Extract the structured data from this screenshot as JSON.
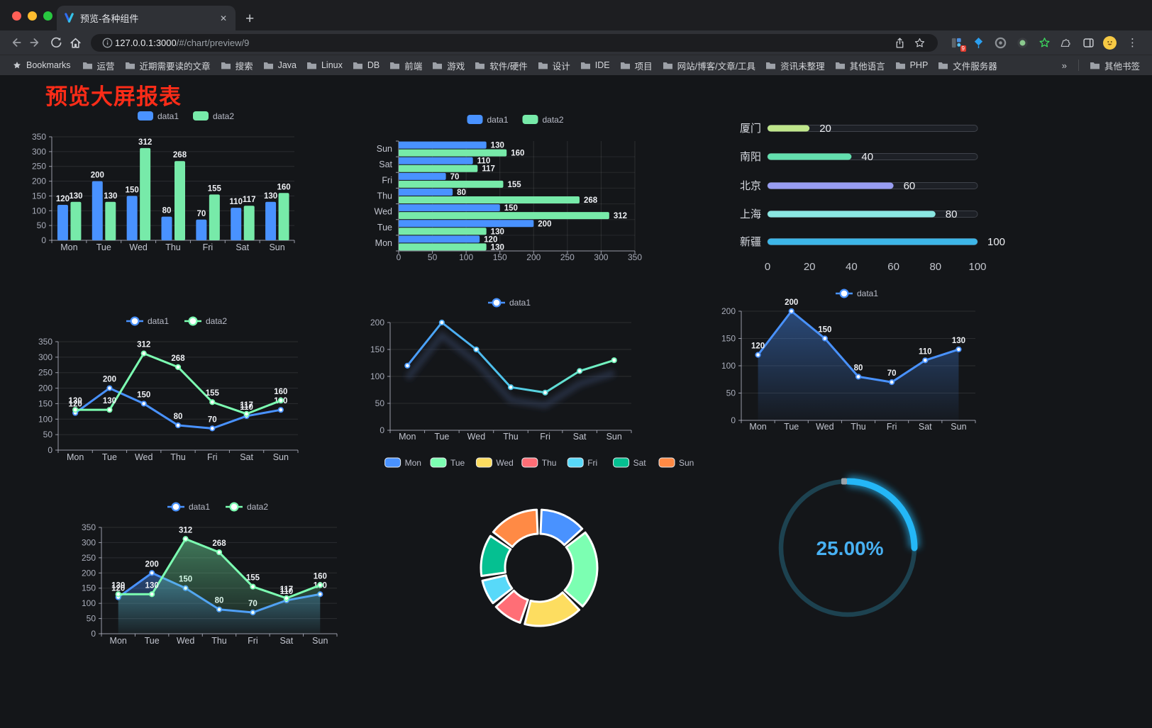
{
  "browser": {
    "tab_title": "预览-各种组件",
    "url_host": "127.0.0.1:3000",
    "url_path": "/#/chart/preview/9",
    "bookmarks_label": "Bookmarks",
    "bookmarks": [
      "运营",
      "近期需要读的文章",
      "搜索",
      "Java",
      "Linux",
      "DB",
      "前端",
      "游戏",
      "软件/硬件",
      "设计",
      "IDE",
      "项目",
      "网站/博客/文章/工具",
      "资讯未整理",
      "其他语言",
      "PHP",
      "文件服务器"
    ],
    "overflow_chevron": "»",
    "other_bookmarks": "其他书签",
    "extension_badge": "9",
    "newtab_label": "+",
    "close_label": "✕",
    "menu_label": "⋮"
  },
  "page": {
    "title": "预览大屏报表",
    "title_color": "#fb2c18",
    "background": "#141619"
  },
  "palette": {
    "blue": "#4992ff",
    "green": "#7cffb2",
    "yellow": "#fddd60",
    "red": "#ff6e76",
    "lightblue": "#58d9f9",
    "teal": "#05c091",
    "orange": "#ff8a45"
  },
  "chart_data": [
    {
      "id": "c1",
      "type": "bar",
      "legend": [
        "data1",
        "data2"
      ],
      "legend_position": "top",
      "categories": [
        "Mon",
        "Tue",
        "Wed",
        "Thu",
        "Fri",
        "Sat",
        "Sun"
      ],
      "series": [
        {
          "name": "data1",
          "color": "#4992ff",
          "values": [
            120,
            200,
            150,
            80,
            70,
            110,
            130
          ]
        },
        {
          "name": "data2",
          "color": "#77eaa9",
          "values": [
            130,
            130,
            312,
            268,
            155,
            117,
            160
          ]
        }
      ],
      "ylim": [
        0,
        350
      ],
      "ytick_step": 50,
      "grid": true,
      "show_labels": true
    },
    {
      "id": "c2",
      "type": "bar-horizontal",
      "legend": [
        "data1",
        "data2"
      ],
      "legend_position": "top",
      "categories": [
        "Mon",
        "Tue",
        "Wed",
        "Thu",
        "Fri",
        "Sat",
        "Sun"
      ],
      "series": [
        {
          "name": "data1",
          "color": "#4992ff",
          "values": [
            120,
            200,
            150,
            80,
            70,
            110,
            130
          ]
        },
        {
          "name": "data2",
          "color": "#77eaa9",
          "values": [
            130,
            130,
            312,
            268,
            155,
            117,
            160
          ]
        }
      ],
      "xlim": [
        0,
        350
      ],
      "xtick_step": 50,
      "grid": true,
      "show_labels": true
    },
    {
      "id": "c3",
      "type": "progress-bars",
      "xlim": [
        0,
        100
      ],
      "xticks": [
        0,
        20,
        40,
        60,
        80,
        100
      ],
      "rows": [
        {
          "label": "厦门",
          "value": 20,
          "color": "#bfe68b"
        },
        {
          "label": "南阳",
          "value": 40,
          "color": "#63dfae"
        },
        {
          "label": "北京",
          "value": 60,
          "color": "#989df2"
        },
        {
          "label": "上海",
          "value": 80,
          "color": "#8ae7e2"
        },
        {
          "label": "新疆",
          "value": 100,
          "color": "#3db6e8"
        }
      ]
    },
    {
      "id": "c4",
      "type": "line",
      "legend": [
        "data1",
        "data2"
      ],
      "legend_position": "top",
      "categories": [
        "Mon",
        "Tue",
        "Wed",
        "Thu",
        "Fri",
        "Sat",
        "Sun"
      ],
      "series": [
        {
          "name": "data1",
          "color": "#4992ff",
          "values": [
            120,
            200,
            150,
            80,
            70,
            110,
            130
          ]
        },
        {
          "name": "data2",
          "color": "#7cffb2",
          "values": [
            130,
            130,
            312,
            268,
            155,
            117,
            160
          ]
        }
      ],
      "ylim": [
        0,
        350
      ],
      "ytick_step": 50,
      "grid": true,
      "show_labels": true,
      "area": false
    },
    {
      "id": "c5",
      "type": "line",
      "legend": [
        "data1"
      ],
      "legend_position": "top",
      "categories": [
        "Mon",
        "Tue",
        "Wed",
        "Thu",
        "Fri",
        "Sat",
        "Sun"
      ],
      "series": [
        {
          "name": "data1",
          "gradient": [
            "#4992ff",
            "#4fc7e9",
            "#7cffb2"
          ],
          "color": "#4992ff",
          "values": [
            120,
            200,
            150,
            80,
            70,
            110,
            130
          ]
        }
      ],
      "ylim": [
        0,
        200
      ],
      "ytick_step": 50,
      "grid": true,
      "show_labels": false,
      "area": false,
      "shadow": true
    },
    {
      "id": "c6",
      "type": "area",
      "legend": [
        "data1"
      ],
      "legend_position": "top",
      "categories": [
        "Mon",
        "Tue",
        "Wed",
        "Thu",
        "Fri",
        "Sat",
        "Sun"
      ],
      "series": [
        {
          "name": "data1",
          "color": "#4992ff",
          "values": [
            120,
            200,
            150,
            80,
            70,
            110,
            130
          ],
          "area": true
        }
      ],
      "ylim": [
        0,
        200
      ],
      "ytick_step": 50,
      "grid": true,
      "show_labels": true
    },
    {
      "id": "c7",
      "type": "area",
      "legend": [
        "data1",
        "data2"
      ],
      "legend_position": "top",
      "categories": [
        "Mon",
        "Tue",
        "Wed",
        "Thu",
        "Fri",
        "Sat",
        "Sun"
      ],
      "series": [
        {
          "name": "data1",
          "color": "#4992ff",
          "values": [
            120,
            200,
            150,
            80,
            70,
            110,
            130
          ],
          "area": true
        },
        {
          "name": "data2",
          "color": "#7cffb2",
          "values": [
            130,
            130,
            312,
            268,
            155,
            117,
            160
          ],
          "area": true
        }
      ],
      "ylim": [
        0,
        350
      ],
      "ytick_step": 50,
      "grid": true,
      "show_labels": true
    },
    {
      "id": "c8",
      "type": "pie",
      "legend_position": "top",
      "items": [
        {
          "label": "Mon",
          "value": 120,
          "color": "#4992ff"
        },
        {
          "label": "Tue",
          "value": 200,
          "color": "#7cffb2"
        },
        {
          "label": "Wed",
          "value": 150,
          "color": "#fddd60"
        },
        {
          "label": "Thu",
          "value": 80,
          "color": "#ff6e76"
        },
        {
          "label": "Fri",
          "value": 70,
          "color": "#58d9f9"
        },
        {
          "label": "Sat",
          "value": 110,
          "color": "#05c091"
        },
        {
          "label": "Sun",
          "value": 130,
          "color": "#ff8a45"
        }
      ],
      "inner_radius_ratio": 0.58
    },
    {
      "id": "c9",
      "type": "gauge",
      "value": 25,
      "label": "25.00%",
      "color": "#24b7f7",
      "track_color": "#1d4250",
      "text_color": "#48b1f3"
    }
  ]
}
